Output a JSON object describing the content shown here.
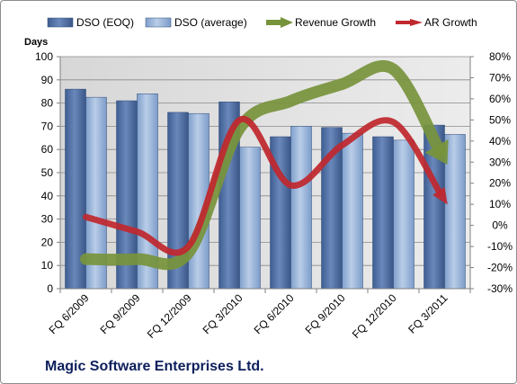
{
  "chart_data": {
    "type": "bar",
    "caption": "Magic Software Enterprises Ltd.",
    "ylabel": "Days",
    "categories": [
      "FQ 6/2009",
      "FQ 9/2009",
      "FQ 12/2009",
      "FQ 3/2010",
      "FQ 6/2010",
      "FQ 9/2010",
      "FQ 12/2010",
      "FQ 3/2011"
    ],
    "ylim": [
      0,
      100
    ],
    "y_ticks": [
      "0",
      "10",
      "20",
      "30",
      "40",
      "50",
      "60",
      "70",
      "80",
      "90",
      "100"
    ],
    "y2lim": [
      -30,
      80
    ],
    "y2_ticks": [
      "-30%",
      "-20%",
      "-10%",
      "0%",
      "10%",
      "20%",
      "30%",
      "40%",
      "50%",
      "60%",
      "70%",
      "80%"
    ],
    "bar_series": [
      {
        "name": "DSO (EOQ)",
        "color": "#4f6fa3",
        "values": [
          86,
          81,
          76,
          80.5,
          65.5,
          69.5,
          65.5,
          70.5
        ]
      },
      {
        "name": "DSO (average)",
        "color": "#95b3d7",
        "values": [
          82.5,
          84,
          75.5,
          61,
          70,
          67,
          64,
          66.5
        ]
      }
    ],
    "line_series": [
      {
        "name": "Revenue Growth",
        "color": "#77933c",
        "unit": "%",
        "values": [
          -16,
          -16,
          -13,
          46,
          59,
          67,
          74,
          31
        ]
      },
      {
        "name": "AR Growth",
        "color": "#c0282e",
        "unit": "%",
        "values": [
          4,
          -3,
          -10,
          50,
          19,
          38,
          49,
          12
        ]
      }
    ],
    "grid": true,
    "legend_position": "top"
  }
}
